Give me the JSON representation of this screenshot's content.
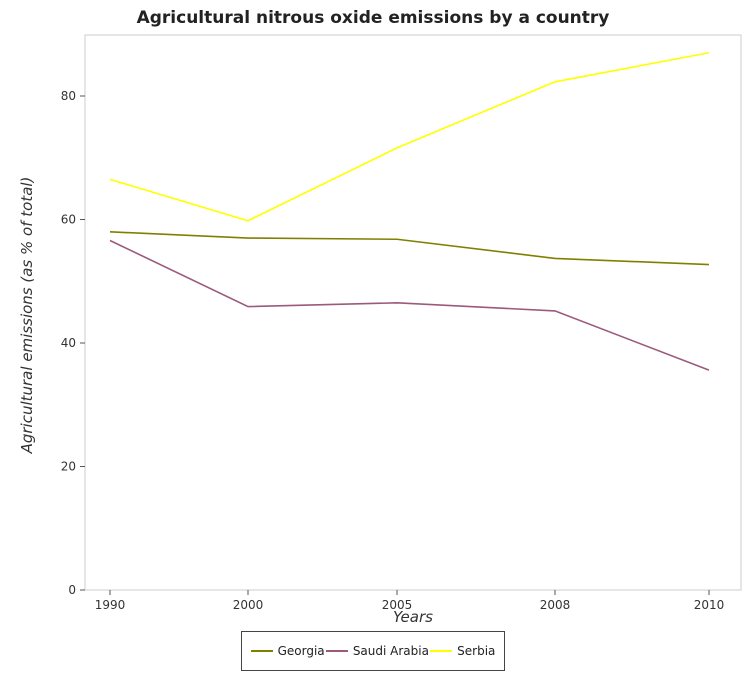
{
  "chart_data": {
    "type": "line",
    "title": "Agricultural nitrous oxide emissions by a country",
    "xlabel": "Years",
    "ylabel": "Agricultural emissions (as % of total)",
    "categories": [
      "1990",
      "2000",
      "2005",
      "2008",
      "2010"
    ],
    "ylim": [
      0,
      90
    ],
    "yticks": [
      0,
      20,
      40,
      60,
      80
    ],
    "grid": false,
    "legend_position": "bottom",
    "series": [
      {
        "name": "Georgia",
        "color": "#808000",
        "values": [
          58.0,
          57.0,
          56.8,
          53.7,
          52.7
        ]
      },
      {
        "name": "Saudi Arabia",
        "color": "#9b5a7a",
        "values": [
          56.6,
          45.9,
          46.5,
          45.2,
          35.6
        ]
      },
      {
        "name": "Serbia",
        "color": "#ffff00",
        "values": [
          66.5,
          59.8,
          71.6,
          82.3,
          87.0
        ]
      }
    ]
  }
}
